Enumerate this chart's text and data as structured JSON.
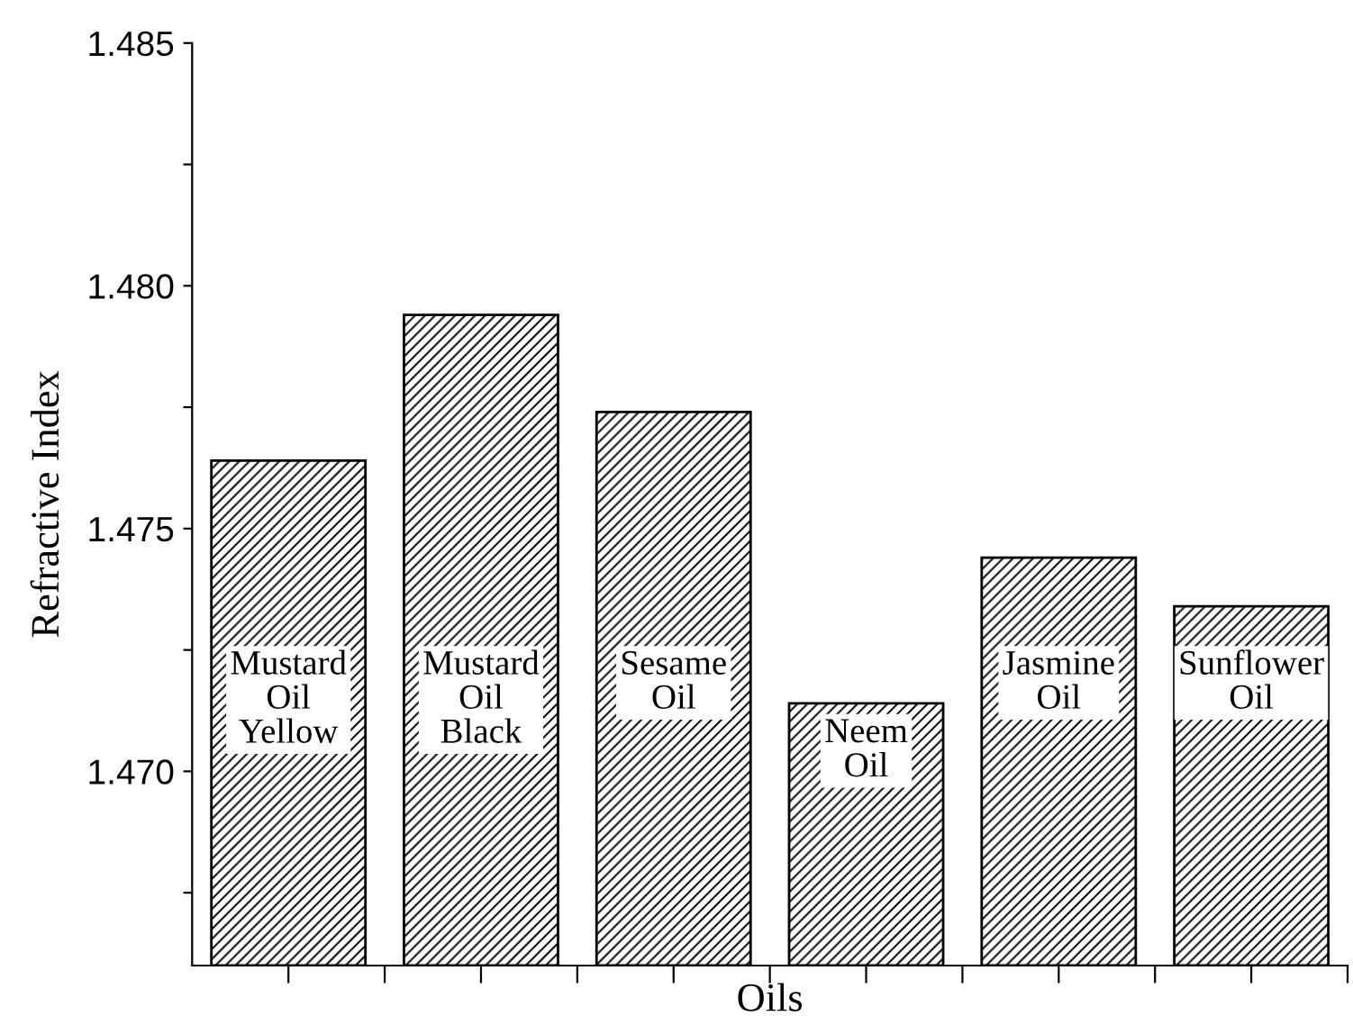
{
  "chart_data": {
    "type": "bar",
    "xlabel": "Oils",
    "ylabel": "Refractive Index",
    "categories": [
      "Mustard\nOil\nYellow",
      "Mustard\nOil\nBlack",
      "Sesame\nOil",
      "Neem\nOil",
      "Jasmine\nOil",
      "Sunflower\nOil"
    ],
    "values": [
      1.4764,
      1.4794,
      1.4774,
      1.4714,
      1.4744,
      1.4734
    ],
    "color": "#000000",
    "ylim": [
      1.466,
      1.485
    ],
    "yticks": [
      {
        "value": 1.4675,
        "label": null
      },
      {
        "value": 1.47,
        "label": "1.470"
      },
      {
        "value": 1.4725,
        "label": null
      },
      {
        "value": 1.475,
        "label": "1.475"
      },
      {
        "value": 1.4775,
        "label": null
      },
      {
        "value": 1.48,
        "label": "1.480"
      },
      {
        "value": 1.4825,
        "label": null
      },
      {
        "value": 1.485,
        "label": "1.485"
      }
    ],
    "grid": false,
    "legend": false,
    "tick_labels": "y"
  }
}
